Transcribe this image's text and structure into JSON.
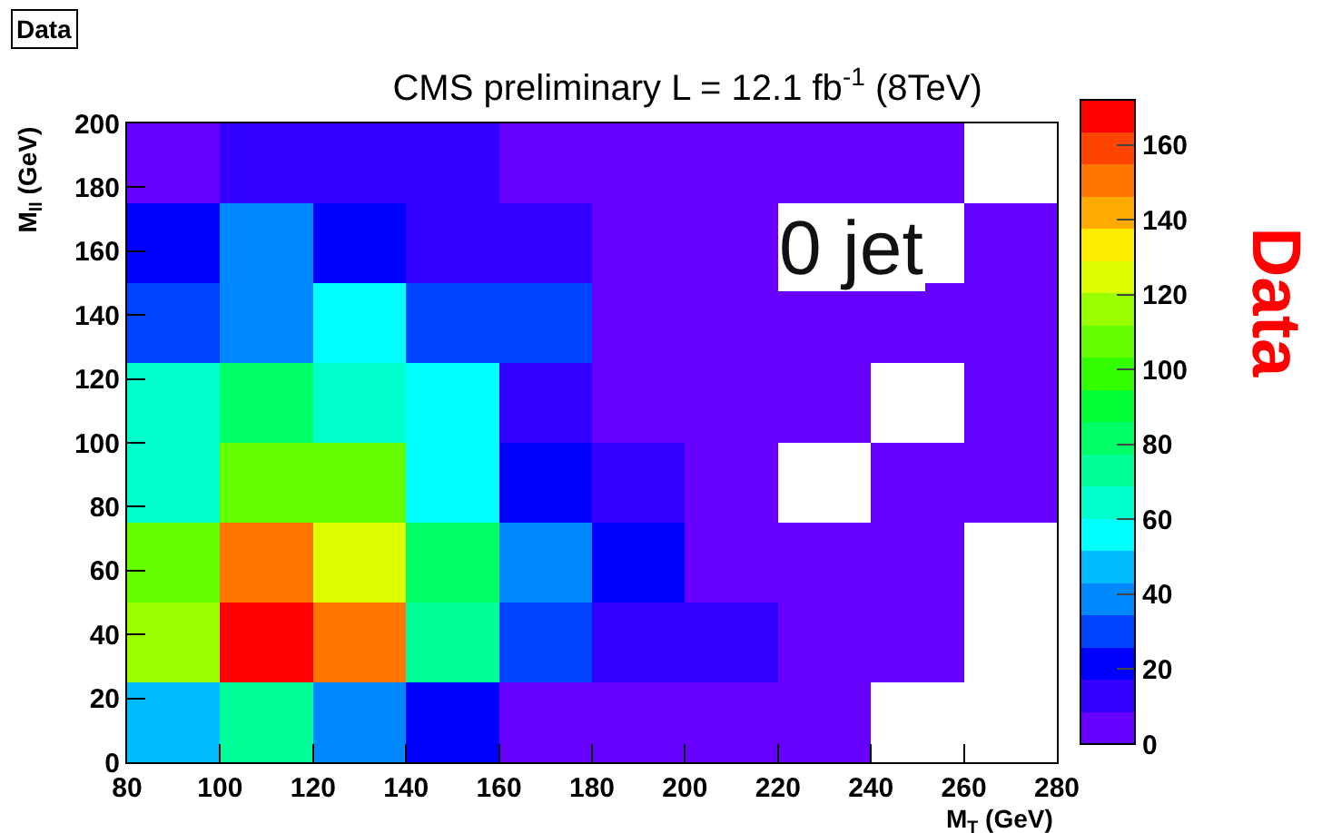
{
  "chart_data": {
    "type": "heatmap",
    "title": "CMS preliminary L = 12.1 fb$^{-1}$ (8TeV)",
    "xlabel": "M$_{T}$ (GeV)",
    "ylabel": "M$_{ll}$ (GeV)",
    "clabel": "Data",
    "annotations": [
      "Data",
      "0 jet"
    ],
    "cells": [
      [
        4,
        13,
        13,
        13,
        4,
        4,
        4,
        4,
        4,
        null
      ],
      [
        22,
        39,
        22,
        13,
        13,
        4,
        4,
        null,
        null,
        4
      ],
      [
        30,
        39,
        56,
        30,
        30,
        4,
        4,
        4,
        4,
        4
      ],
      [
        65,
        82,
        65,
        56,
        13,
        4,
        4,
        4,
        null,
        4
      ],
      [
        65,
        108,
        108,
        56,
        22,
        13,
        4,
        null,
        4,
        4
      ],
      [
        108,
        150,
        125,
        82,
        39,
        22,
        4,
        4,
        4,
        null
      ],
      [
        116,
        168,
        150,
        73,
        30,
        13,
        13,
        4,
        4,
        null
      ],
      [
        47,
        73,
        39,
        22,
        4,
        4,
        4,
        4,
        null,
        null
      ]
    ],
    "colors": [
      "#6600ff",
      "#3300ff",
      "#0000ff",
      "#0044ff",
      "#0088ff",
      "#00bbff",
      "#00ffff",
      "#00ffcc",
      "#00ff99",
      "#00ff66",
      "#00ff33",
      "#33ff00",
      "#66ff00",
      "#99ff00",
      "#ddff00",
      "#ffee00",
      "#ffaa00",
      "#ff7700",
      "#ff4400",
      "#ff0000"
    ],
    "xlim": [
      80,
      280
    ],
    "xticks": [
      80,
      100,
      120,
      140,
      160,
      180,
      200,
      220,
      240,
      260,
      280
    ],
    "ylim": [
      0,
      200
    ],
    "yticks": [
      0,
      20,
      40,
      60,
      80,
      100,
      120,
      140,
      160,
      180,
      200
    ],
    "clim": [
      0,
      172
    ],
    "cticks": [
      0,
      20,
      40,
      60,
      80,
      100,
      120,
      140,
      160
    ],
    "grid": false
  }
}
